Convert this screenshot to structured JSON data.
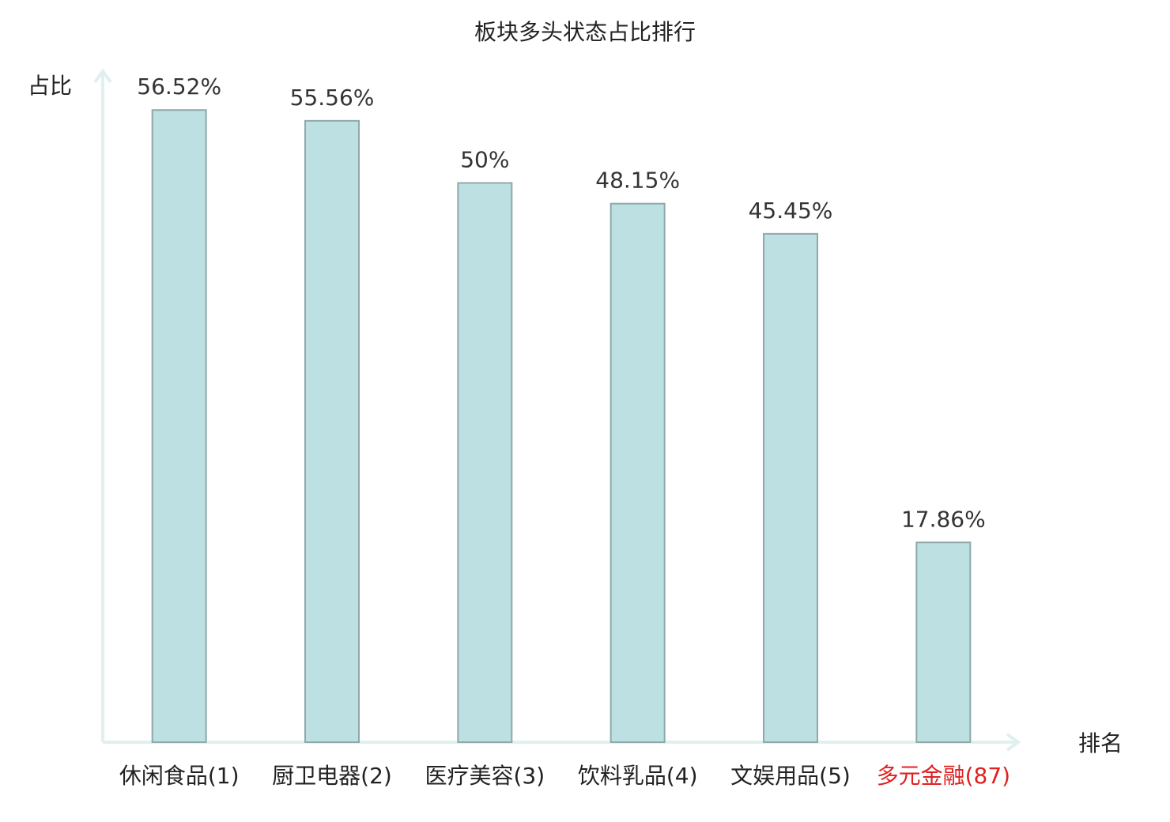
{
  "chart_data": {
    "type": "bar",
    "title": "板块多头状态占比排行",
    "y_label": "占比",
    "x_label": "排名",
    "categories": [
      "休闲食品(1)",
      "厨卫电器(2)",
      "医疗美容(3)",
      "饮料乳品(4)",
      "文娱用品(5)",
      "多元金融(87)"
    ],
    "values": [
      56.52,
      55.56,
      50,
      48.15,
      45.45,
      17.86
    ],
    "value_labels": [
      "56.52%",
      "55.56%",
      "50%",
      "48.15%",
      "45.45%",
      "17.86%"
    ],
    "color": "#bde0e2",
    "edge_color": "#8fa8aa",
    "category_colors": [
      "#222222",
      "#222222",
      "#222222",
      "#222222",
      "#222222",
      "#e02020"
    ],
    "ylim": [
      0,
      60
    ]
  }
}
